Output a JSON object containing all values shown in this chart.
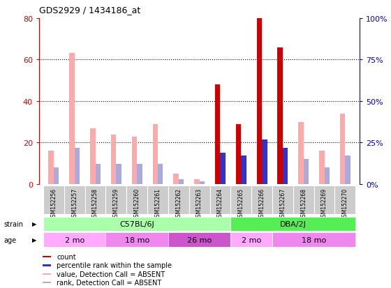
{
  "title": "GDS2929 / 1434186_at",
  "samples": [
    "GSM152256",
    "GSM152257",
    "GSM152258",
    "GSM152259",
    "GSM152260",
    "GSM152261",
    "GSM152262",
    "GSM152263",
    "GSM152264",
    "GSM152265",
    "GSM152266",
    "GSM152267",
    "GSM152268",
    "GSM152269",
    "GSM152270"
  ],
  "count_values": [
    0,
    0,
    0,
    0,
    0,
    0,
    0,
    0,
    48,
    29,
    80,
    66,
    0,
    0,
    0
  ],
  "rank_values_pct": [
    0,
    0,
    0,
    0,
    0,
    0,
    0,
    0,
    19,
    17,
    27,
    22,
    0,
    0,
    0
  ],
  "absent_value": [
    16,
    63,
    27,
    24,
    23,
    29,
    5,
    2.5,
    0,
    0,
    0,
    0,
    30,
    16,
    34
  ],
  "absent_rank_pct": [
    10,
    22,
    12,
    12,
    12,
    12,
    3,
    1.5,
    0,
    0,
    0,
    0,
    15,
    10,
    17
  ],
  "count_color": "#cc0000",
  "rank_color": "#3333cc",
  "absent_value_color": "#ffaaaa",
  "absent_rank_color": "#aaaadd",
  "ylim_left": [
    0,
    80
  ],
  "ylim_right": [
    0,
    100
  ],
  "yticks_left": [
    0,
    20,
    40,
    60,
    80
  ],
  "yticks_right": [
    0,
    25,
    50,
    75,
    100
  ],
  "strain_groups": [
    {
      "label": "C57BL/6J",
      "start": 0,
      "end": 8,
      "color": "#aaffaa"
    },
    {
      "label": "DBA/2J",
      "start": 9,
      "end": 14,
      "color": "#55ee55"
    }
  ],
  "age_groups": [
    {
      "label": "2 mo",
      "start": 0,
      "end": 2,
      "color": "#ffaaff"
    },
    {
      "label": "18 mo",
      "start": 3,
      "end": 5,
      "color": "#ee88ee"
    },
    {
      "label": "26 mo",
      "start": 6,
      "end": 8,
      "color": "#cc55cc"
    },
    {
      "label": "2 mo",
      "start": 9,
      "end": 10,
      "color": "#ffaaff"
    },
    {
      "label": "18 mo",
      "start": 11,
      "end": 14,
      "color": "#ee88ee"
    }
  ],
  "legend_items": [
    {
      "label": "count",
      "color": "#cc0000"
    },
    {
      "label": "percentile rank within the sample",
      "color": "#3333cc"
    },
    {
      "label": "value, Detection Call = ABSENT",
      "color": "#ffaaaa"
    },
    {
      "label": "rank, Detection Call = ABSENT",
      "color": "#aaaadd"
    }
  ],
  "bar_width": 0.25,
  "rank_bar_width": 0.25,
  "background_color": "#ffffff",
  "axis_color_left": "#cc0000",
  "axis_color_right": "#0000cc",
  "sample_bg_color": "#cccccc"
}
